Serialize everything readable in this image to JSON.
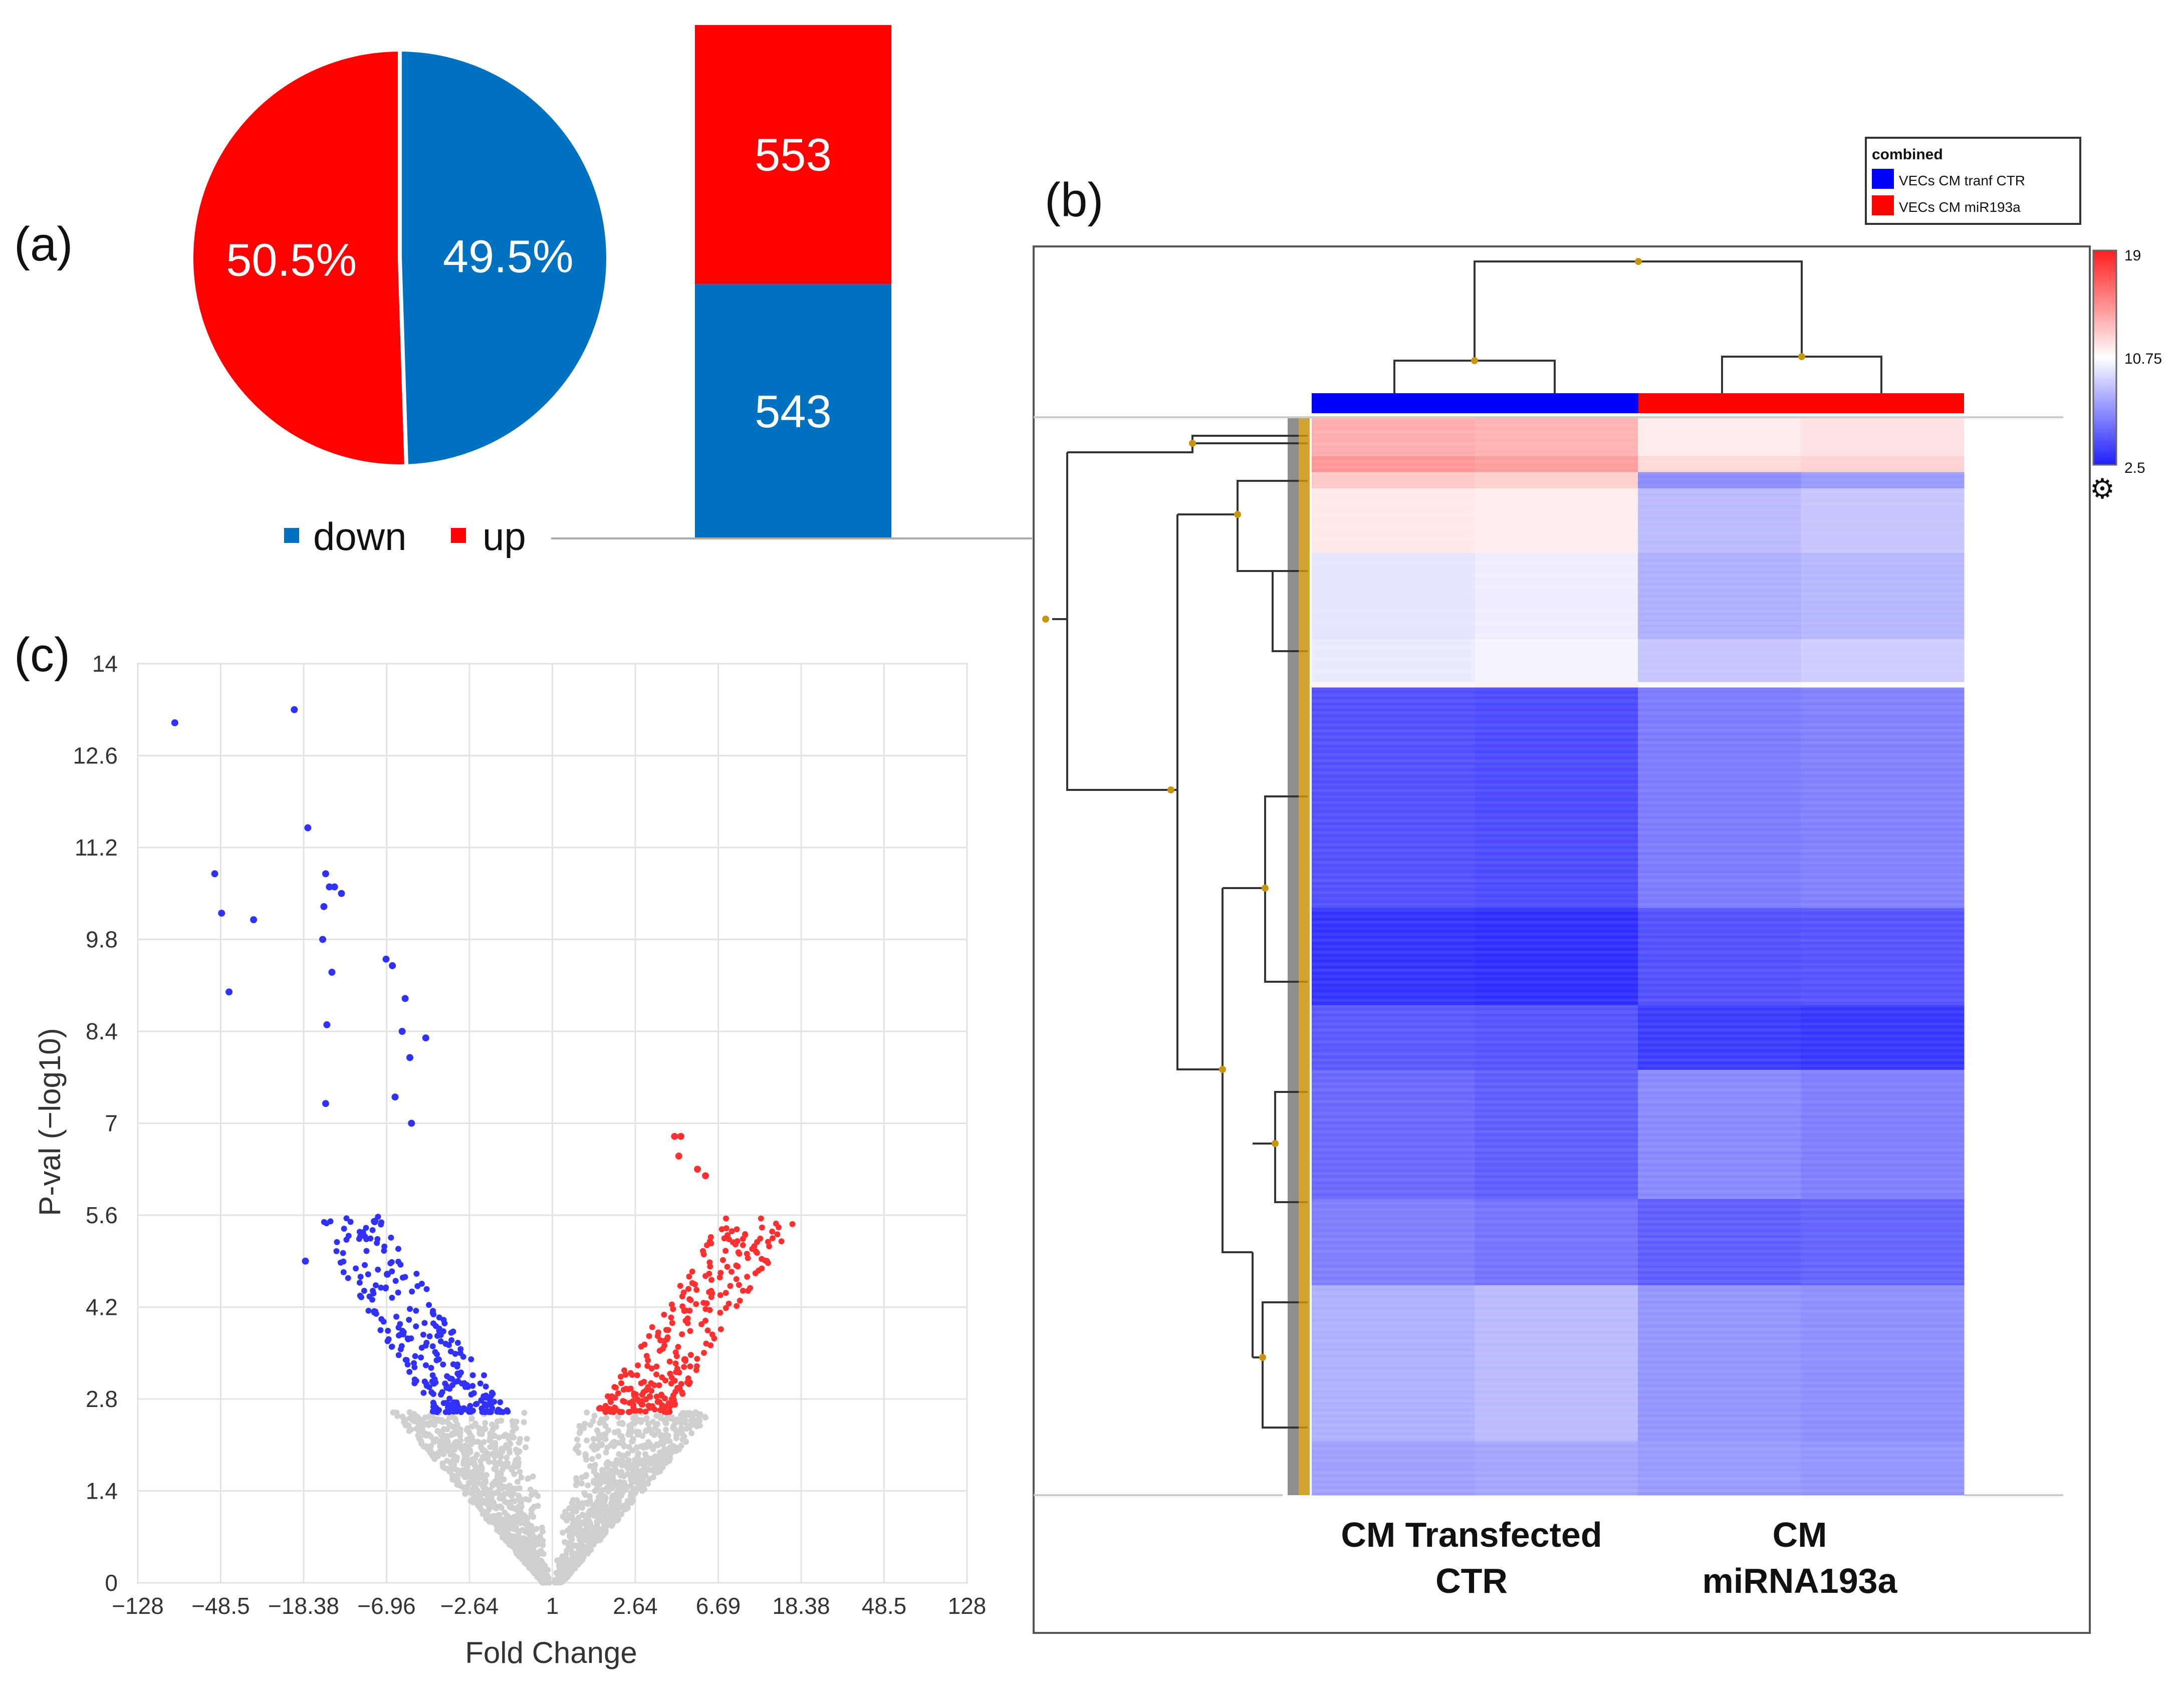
{
  "panel_labels": {
    "a": "(a)",
    "b": "(b)",
    "c": "(c)"
  },
  "colors": {
    "up": "#ff0000",
    "down": "#0070c0",
    "heat_low": "#1f1fff",
    "heat_mid": "#ffffff",
    "heat_high": "#ff1f1f",
    "volcano_up": "#ff3030",
    "volcano_down": "#3030ff",
    "volcano_ns": "#cfcfcf"
  },
  "chart_data": [
    {
      "type": "pie",
      "panel": "a",
      "slices": [
        {
          "name": "up",
          "label": "50.5%",
          "value": 50.5
        },
        {
          "name": "down",
          "label": "49.5%",
          "value": 49.5
        }
      ],
      "legend": [
        {
          "name": "down",
          "label": "down"
        },
        {
          "name": "up",
          "label": "up"
        }
      ]
    },
    {
      "type": "bar",
      "panel": "a",
      "stacked": true,
      "segments": [
        {
          "name": "up",
          "value": 553,
          "label": "553"
        },
        {
          "name": "down",
          "value": 543,
          "label": "543"
        }
      ]
    },
    {
      "type": "heatmap",
      "panel": "b",
      "legend_title": "combined",
      "groups": [
        {
          "name": "VECs_CM tranf_CTR",
          "label": "VECs   CM tranf  CTR",
          "color": "#0000ff"
        },
        {
          "name": "VECs_CM miR193a",
          "label": "VECs   CM miR193a",
          "color": "#ff0000"
        }
      ],
      "column_labels": [
        {
          "line1": "CM Transfected",
          "line2": "CTR"
        },
        {
          "line1": "CM",
          "line2": "miRNA193a"
        }
      ],
      "scale": {
        "min": 2.5,
        "mid": 10.75,
        "max": 19,
        "min_label": "2.5",
        "mid_label": "10.75",
        "max_label": "19"
      },
      "blocks": [
        {
          "frac": 0.035,
          "values": [
            13.8,
            13.6,
            11.5,
            11.8
          ]
        },
        {
          "frac": 0.015,
          "values": [
            14.6,
            14.4,
            12.2,
            12.4
          ]
        },
        {
          "frac": 0.015,
          "values": [
            12.8,
            12.5,
            6.5,
            7.0
          ]
        },
        {
          "frac": 0.06,
          "values": [
            11.6,
            11.4,
            8.2,
            8.6
          ]
        },
        {
          "frac": 0.08,
          "values": [
            9.8,
            10.1,
            7.8,
            8.1
          ]
        },
        {
          "frac": 0.04,
          "values": [
            10.0,
            10.3,
            8.6,
            8.9
          ]
        },
        {
          "frac": 0.005,
          "values": [
            11.2,
            11.3,
            10.6,
            10.7
          ]
        },
        {
          "frac": 0.205,
          "values": [
            4.3,
            4.1,
            5.9,
            6.1
          ]
        },
        {
          "frac": 0.09,
          "values": [
            3.2,
            3.0,
            4.3,
            4.4
          ]
        },
        {
          "frac": 0.06,
          "values": [
            4.6,
            4.4,
            3.5,
            3.3
          ]
        },
        {
          "frac": 0.12,
          "values": [
            5.2,
            4.8,
            6.4,
            6.0
          ]
        },
        {
          "frac": 0.08,
          "values": [
            6.0,
            5.6,
            4.8,
            5.0
          ]
        },
        {
          "frac": 0.145,
          "values": [
            7.8,
            8.2,
            6.8,
            6.6
          ]
        },
        {
          "frac": 0.05,
          "values": [
            7.2,
            7.4,
            7.0,
            6.8
          ]
        }
      ]
    },
    {
      "type": "scatter",
      "panel": "c",
      "xlabel": "Fold Change",
      "ylabel": "P-val (−log10)",
      "ylim": [
        0,
        14
      ],
      "xticks": [
        "−128",
        "−48.5",
        "−18.38",
        "−6.96",
        "−2.64",
        "1",
        "2.64",
        "6.69",
        "18.38",
        "48.5",
        "128"
      ],
      "yticks": [
        "0",
        "1.4",
        "2.8",
        "4.2",
        "5.6",
        "7",
        "8.4",
        "9.8",
        "11.2",
        "12.6",
        "14"
      ],
      "significance_threshold": 2.6,
      "up_count": 553,
      "down_count": 543,
      "highlighted_points_down": [
        {
          "x": -83,
          "y": 13.1
        },
        {
          "x": -20.5,
          "y": 13.3
        },
        {
          "x": -17.5,
          "y": 11.5
        },
        {
          "x": -52,
          "y": 10.8
        },
        {
          "x": -14.2,
          "y": 10.8
        },
        {
          "x": -13.6,
          "y": 10.6
        },
        {
          "x": -12.8,
          "y": 10.6
        },
        {
          "x": -11.8,
          "y": 10.5
        },
        {
          "x": -14.5,
          "y": 10.3
        },
        {
          "x": -48,
          "y": 10.2
        },
        {
          "x": -33,
          "y": 10.1
        },
        {
          "x": -14.7,
          "y": 9.8
        },
        {
          "x": -13.2,
          "y": 9.3
        },
        {
          "x": -44,
          "y": 9.0
        },
        {
          "x": -7.0,
          "y": 9.5
        },
        {
          "x": -6.5,
          "y": 9.4
        },
        {
          "x": -5.6,
          "y": 8.9
        },
        {
          "x": -14.0,
          "y": 8.5
        },
        {
          "x": -5.8,
          "y": 8.4
        },
        {
          "x": -4.4,
          "y": 8.3
        },
        {
          "x": -5.3,
          "y": 8.0
        },
        {
          "x": -14.2,
          "y": 7.3
        },
        {
          "x": -18.0,
          "y": 4.9
        },
        {
          "x": -8.0,
          "y": 5.5
        },
        {
          "x": -6.9,
          "y": 4.7
        },
        {
          "x": -6.3,
          "y": 7.4
        },
        {
          "x": -5.2,
          "y": 7.0
        }
      ],
      "highlighted_points_up": [
        {
          "x": 5.8,
          "y": 6.2
        },
        {
          "x": 4.4,
          "y": 6.8
        },
        {
          "x": 4.1,
          "y": 6.8
        },
        {
          "x": 4.6,
          "y": 3.4
        },
        {
          "x": 5.3,
          "y": 6.3
        },
        {
          "x": 4.3,
          "y": 6.5
        }
      ]
    }
  ]
}
